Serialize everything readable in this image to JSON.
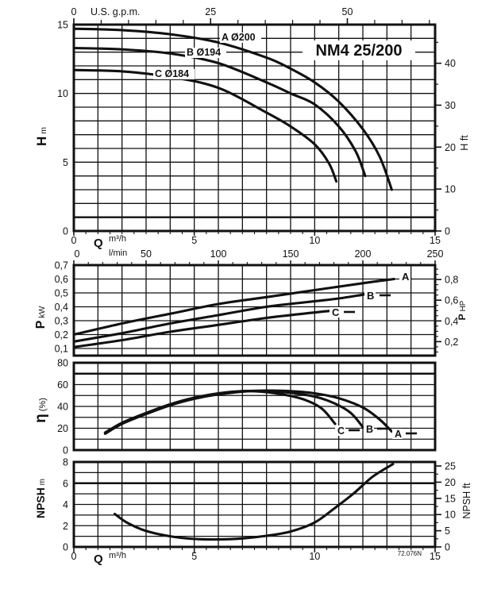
{
  "colors": {
    "ink": "#111111",
    "grid": "#2b2b2b",
    "background": "#ffffff"
  },
  "chart_data": [
    {
      "id": "head",
      "type": "line",
      "title": "NM4 25/200",
      "grid": "on",
      "xlim": [
        0,
        15
      ],
      "ylim": [
        0,
        15
      ],
      "ylabel": "H",
      "ylabel_unit": "m",
      "yticks": {
        "values": [
          0,
          5,
          10,
          15
        ],
        "labels": [
          "0",
          "5",
          "10",
          "15"
        ]
      },
      "top_axis": {
        "label": "U.S. g.p.m.",
        "tick_values": [
          0,
          25,
          50
        ],
        "tick_labels": [
          "0",
          "25",
          "50"
        ],
        "minor_step": 5
      },
      "right_axis": {
        "label": "H ft",
        "tick_values": [
          0,
          10,
          20,
          30,
          40
        ],
        "tick_labels": [
          "0",
          "10",
          "20",
          "30",
          "40"
        ],
        "minor_step": 5
      },
      "series": [
        {
          "name": "A",
          "label": "A Ø200",
          "points": [
            [
              0,
              14.7
            ],
            [
              2,
              14.6
            ],
            [
              4,
              14.3
            ],
            [
              6,
              13.7
            ],
            [
              8,
              12.6
            ],
            [
              9,
              11.8
            ],
            [
              10,
              10.8
            ],
            [
              11,
              9.4
            ],
            [
              12,
              7.4
            ],
            [
              12.7,
              5.4
            ],
            [
              13.2,
              3.0
            ]
          ]
        },
        {
          "name": "B",
          "label": "B Ø194",
          "points": [
            [
              0,
              13.3
            ],
            [
              2,
              13.2
            ],
            [
              4,
              12.9
            ],
            [
              6,
              12.2
            ],
            [
              8,
              10.8
            ],
            [
              9,
              10.0
            ],
            [
              10,
              9.2
            ],
            [
              11,
              7.6
            ],
            [
              11.7,
              5.8
            ],
            [
              12.1,
              4.0
            ]
          ]
        },
        {
          "name": "C",
          "label": "C Ø184",
          "points": [
            [
              0,
              11.7
            ],
            [
              2,
              11.6
            ],
            [
              4,
              11.2
            ],
            [
              6,
              10.4
            ],
            [
              8,
              8.6
            ],
            [
              9,
              7.6
            ],
            [
              10,
              6.3
            ],
            [
              10.6,
              4.9
            ],
            [
              10.9,
              3.6
            ]
          ]
        }
      ]
    },
    {
      "id": "power",
      "type": "line",
      "grid": "on",
      "xlim": [
        0,
        15
      ],
      "ylim": [
        0.05,
        0.7
      ],
      "ylabel": "P",
      "ylabel_unit": "kW",
      "yticks": {
        "values": [
          0.1,
          0.2,
          0.3,
          0.4,
          0.5,
          0.6,
          0.7
        ],
        "labels": [
          "0,1",
          "0,2",
          "0,3",
          "0,4",
          "0,5",
          "0,6",
          "0,7"
        ]
      },
      "right_axis": {
        "label": "P HP",
        "tick_values": [
          0.2,
          0.4,
          0.6,
          0.8
        ],
        "tick_labels": [
          "0,2",
          "0,4",
          "0,6",
          "0,8"
        ],
        "minor_step": 0.05
      },
      "series": [
        {
          "name": "A",
          "label": "A",
          "points": [
            [
              0,
              0.2
            ],
            [
              2,
              0.28
            ],
            [
              4,
              0.35
            ],
            [
              6,
              0.42
            ],
            [
              8,
              0.47
            ],
            [
              10,
              0.52
            ],
            [
              12,
              0.57
            ],
            [
              13.3,
              0.6
            ]
          ]
        },
        {
          "name": "B",
          "label": "B",
          "points": [
            [
              0,
              0.15
            ],
            [
              2,
              0.21
            ],
            [
              4,
              0.28
            ],
            [
              6,
              0.34
            ],
            [
              8,
              0.4
            ],
            [
              10,
              0.44
            ],
            [
              11,
              0.46
            ],
            [
              12.1,
              0.49
            ]
          ]
        },
        {
          "name": "C",
          "label": "C",
          "points": [
            [
              0,
              0.11
            ],
            [
              2,
              0.16
            ],
            [
              4,
              0.22
            ],
            [
              6,
              0.27
            ],
            [
              8,
              0.32
            ],
            [
              9.5,
              0.35
            ],
            [
              10.6,
              0.37
            ]
          ]
        }
      ]
    },
    {
      "id": "eff",
      "type": "line",
      "grid": "on",
      "xlim": [
        0,
        15
      ],
      "ylim": [
        0,
        80
      ],
      "ylabel": "η",
      "ylabel_unit": "(%)",
      "yticks": {
        "values": [
          0,
          20,
          40,
          60,
          80
        ],
        "labels": [
          "0",
          "20",
          "40",
          "60",
          "80"
        ]
      },
      "series": [
        {
          "name": "A",
          "label": "A",
          "points": [
            [
              1.3,
              15
            ],
            [
              2,
              24
            ],
            [
              3,
              33
            ],
            [
              4,
              41
            ],
            [
              5,
              47
            ],
            [
              6,
              51
            ],
            [
              7,
              53.5
            ],
            [
              8,
              54.5
            ],
            [
              9,
              54
            ],
            [
              10,
              52
            ],
            [
              11,
              47.5
            ],
            [
              12,
              39
            ],
            [
              12.7,
              28
            ],
            [
              13.2,
              17
            ]
          ]
        },
        {
          "name": "B",
          "label": "B",
          "points": [
            [
              1.3,
              15.5
            ],
            [
              2,
              24.5
            ],
            [
              3,
              33.5
            ],
            [
              4,
              41.5
            ],
            [
              5,
              47.5
            ],
            [
              6,
              51.5
            ],
            [
              7,
              54
            ],
            [
              8,
              54
            ],
            [
              9,
              52.5
            ],
            [
              10,
              49
            ],
            [
              10.8,
              43
            ],
            [
              11.5,
              34
            ],
            [
              12,
              21
            ]
          ]
        },
        {
          "name": "C",
          "label": "C",
          "points": [
            [
              1.3,
              16
            ],
            [
              2,
              25
            ],
            [
              3,
              34
            ],
            [
              4,
              42
            ],
            [
              5,
              48
            ],
            [
              6,
              52
            ],
            [
              7,
              54
            ],
            [
              7.8,
              53.5
            ],
            [
              8.8,
              50.5
            ],
            [
              9.6,
              46
            ],
            [
              10.3,
              38
            ],
            [
              10.85,
              24
            ]
          ]
        }
      ]
    },
    {
      "id": "npsh",
      "type": "line",
      "grid": "on",
      "xlim": [
        0,
        15
      ],
      "ylim": [
        0,
        8
      ],
      "ylabel": "NPSH",
      "ylabel_unit": "m",
      "yticks": {
        "values": [
          0,
          2,
          4,
          6,
          8
        ],
        "labels": [
          "0",
          "2",
          "4",
          "6",
          "8"
        ]
      },
      "right_axis": {
        "label": "NPSH ft",
        "tick_values": [
          0,
          5,
          10,
          15,
          20,
          25
        ],
        "tick_labels": [
          "0",
          "5",
          "10",
          "15",
          "20",
          "25"
        ],
        "minor_step": 2.5
      },
      "series": [
        {
          "name": "NPSH",
          "label": "",
          "points": [
            [
              1.7,
              3.1
            ],
            [
              2.2,
              2.3
            ],
            [
              3,
              1.5
            ],
            [
              4,
              1.0
            ],
            [
              5,
              0.75
            ],
            [
              6,
              0.7
            ],
            [
              7,
              0.8
            ],
            [
              8,
              1.05
            ],
            [
              9,
              1.45
            ],
            [
              10,
              2.3
            ],
            [
              10.8,
              3.6
            ],
            [
              11.6,
              5.0
            ],
            [
              12.4,
              6.6
            ],
            [
              13.25,
              7.8
            ]
          ]
        }
      ]
    }
  ],
  "flow_axis": {
    "q_label": "Q",
    "m3h_label": "m³/h",
    "lmin_label": "l/min",
    "m3h_ticks": {
      "values": [
        0,
        5,
        10,
        15
      ],
      "labels": [
        "0",
        "5",
        "10",
        "15"
      ]
    },
    "lmin_ticks": {
      "values": [
        0,
        50,
        100,
        150,
        200,
        250
      ],
      "labels": [
        "0",
        "50",
        "100",
        "150",
        "200",
        "250"
      ]
    }
  },
  "bottom_axis": {
    "q_label": "Q",
    "unit_label": "m³/h",
    "ticks": {
      "values": [
        0,
        5,
        10,
        15
      ],
      "labels": [
        "0",
        "5",
        "10",
        "15"
      ]
    },
    "footnote": "72.076N"
  }
}
